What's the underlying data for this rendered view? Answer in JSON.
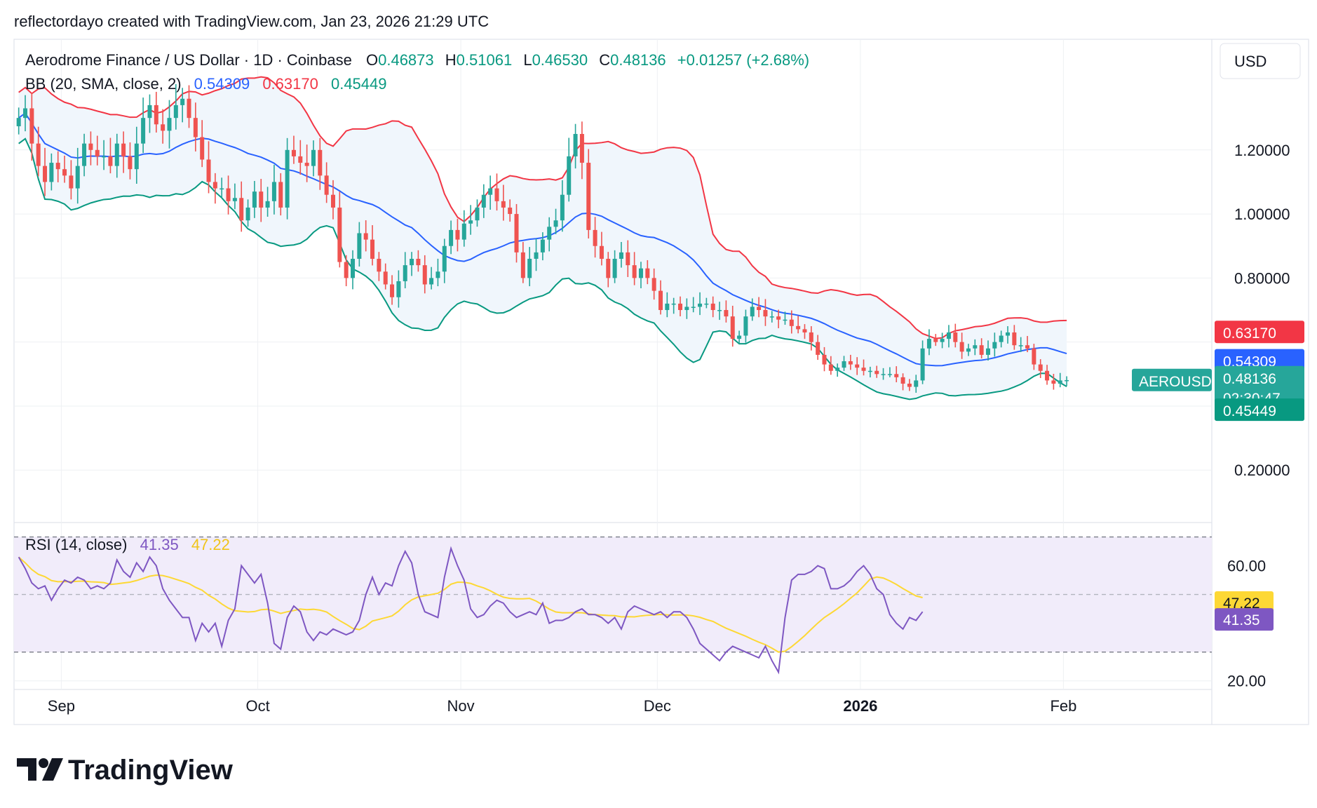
{
  "header_credit": "reflectordayo created with TradingView.com, Jan 23, 2026 21:29 UTC",
  "currency_button": "USD",
  "symbol_line": {
    "title": "Aerodrome Finance / US Dollar · 1D · Coinbase",
    "o_label": "O",
    "o_value": "0.46873",
    "h_label": "H",
    "h_value": "0.51061",
    "l_label": "L",
    "l_value": "0.46530",
    "c_label": "C",
    "c_value": "0.48136",
    "change": "+0.01257 (+2.68%)"
  },
  "bb_line": {
    "label": "BB (20, SMA, close, 2)",
    "basis": "0.54309",
    "upper": "0.63170",
    "lower": "0.45449"
  },
  "rsi_line": {
    "label": "RSI (14, close)",
    "rsi": "41.35",
    "rsi_ma": "47.22"
  },
  "price_tags": {
    "upper": "0.63170",
    "basis": "0.54309",
    "symbol": "AEROUSD",
    "close": "0.48136",
    "countdown": "02:30:47",
    "lower": "0.45449",
    "rsi_ma": "47.22",
    "rsi": "41.35"
  },
  "logo_text": "TradingView",
  "colors": {
    "up": "#26a69a",
    "down": "#ef5350",
    "basis": "#2962ff",
    "upper": "#f23645",
    "lower": "#089981",
    "band_fill": "#f0f6fc",
    "rsi": "#7e57c2",
    "rsi_ma": "#fdd835",
    "rsi_band": "#f1ecfa"
  },
  "chart_data": [
    {
      "type": "candlestick",
      "title": "Aerodrome Finance / US Dollar · 1D · Coinbase",
      "x_ticks": [
        "Sep",
        "Oct",
        "Nov",
        "Dec",
        "2026",
        "Feb"
      ],
      "y_ticks": [
        0.2,
        0.8,
        1.0,
        1.2
      ],
      "y_tick_labels": [
        "0.20000",
        "0.80000",
        "1.00000",
        "1.20000"
      ],
      "ylim": [
        0.08,
        1.48
      ],
      "start_date": "2025-08-25",
      "series": {
        "close": [
          1.3,
          1.33,
          1.22,
          1.15,
          1.1,
          1.16,
          1.14,
          1.12,
          1.08,
          1.15,
          1.22,
          1.2,
          1.18,
          1.18,
          1.15,
          1.22,
          1.18,
          1.14,
          1.22,
          1.3,
          1.34,
          1.28,
          1.26,
          1.3,
          1.34,
          1.36,
          1.3,
          1.24,
          1.17,
          1.1,
          1.08,
          1.08,
          1.04,
          1.05,
          0.98,
          1.02,
          1.07,
          1.02,
          1.04,
          1.1,
          1.02,
          1.2,
          1.18,
          1.16,
          1.15,
          1.2,
          1.12,
          1.06,
          1.02,
          0.85,
          0.8,
          0.86,
          0.94,
          0.92,
          0.86,
          0.82,
          0.78,
          0.74,
          0.79,
          0.84,
          0.86,
          0.84,
          0.78,
          0.8,
          0.82,
          0.9,
          0.95,
          0.92,
          0.97,
          0.98,
          1.02,
          1.06,
          1.08,
          1.04,
          1.02,
          1.0,
          0.88,
          0.8,
          0.86,
          0.88,
          0.92,
          0.96,
          0.98,
          1.06,
          1.18,
          1.25,
          1.16,
          0.95,
          0.9,
          0.86,
          0.8,
          0.86,
          0.88,
          0.84,
          0.8,
          0.83,
          0.8,
          0.76,
          0.7,
          0.72,
          0.72,
          0.7,
          0.71,
          0.71,
          0.72,
          0.72,
          0.7,
          0.7,
          0.68,
          0.61,
          0.62,
          0.68,
          0.71,
          0.7,
          0.68,
          0.68,
          0.67,
          0.67,
          0.65,
          0.64,
          0.63,
          0.6,
          0.56,
          0.53,
          0.51,
          0.52,
          0.54,
          0.53,
          0.52,
          0.51,
          0.51,
          0.5,
          0.5,
          0.5,
          0.49,
          0.47,
          0.46,
          0.48,
          0.58,
          0.61,
          0.6,
          0.61,
          0.63,
          0.6,
          0.57,
          0.58,
          0.59,
          0.56,
          0.58,
          0.6,
          0.62,
          0.63,
          0.59,
          0.59,
          0.58,
          0.53,
          0.51,
          0.48,
          0.47,
          0.48,
          0.481
        ],
        "rsi": [
          63,
          59,
          54,
          52,
          53,
          48,
          52,
          55,
          54,
          56,
          55,
          52,
          53,
          52,
          54,
          62,
          58,
          56,
          61,
          58,
          63,
          60,
          52,
          48,
          45,
          42,
          42,
          34,
          40,
          37,
          40,
          32,
          41,
          45,
          60,
          57,
          54,
          57,
          47,
          33,
          31,
          42,
          46,
          44,
          37,
          34,
          37,
          36,
          38,
          37,
          36,
          37,
          41,
          50,
          56,
          50,
          54,
          53,
          60,
          65,
          61,
          50,
          44,
          43,
          42,
          56,
          66,
          60,
          55,
          45,
          42,
          43,
          46,
          48,
          47,
          44,
          42,
          43,
          44,
          43,
          47,
          40,
          41,
          41,
          42,
          44,
          45,
          43,
          43,
          42,
          40,
          42,
          38,
          44,
          46,
          45,
          44,
          43,
          44,
          42,
          44,
          44,
          42,
          38,
          33,
          31,
          29,
          27,
          30,
          32,
          31,
          30,
          29,
          28,
          32,
          27,
          23,
          42,
          55,
          57,
          57,
          58,
          60,
          59,
          52,
          52,
          53,
          55,
          58,
          60,
          57,
          52,
          50,
          43,
          40,
          38,
          42,
          41,
          44
        ]
      }
    },
    {
      "type": "line",
      "title": "RSI (14, close)",
      "y_ticks": [
        20,
        60
      ],
      "y_tick_labels": [
        "20.00",
        "60.00"
      ],
      "ylim": [
        17,
        75
      ],
      "bands": [
        30,
        50,
        70
      ]
    }
  ]
}
